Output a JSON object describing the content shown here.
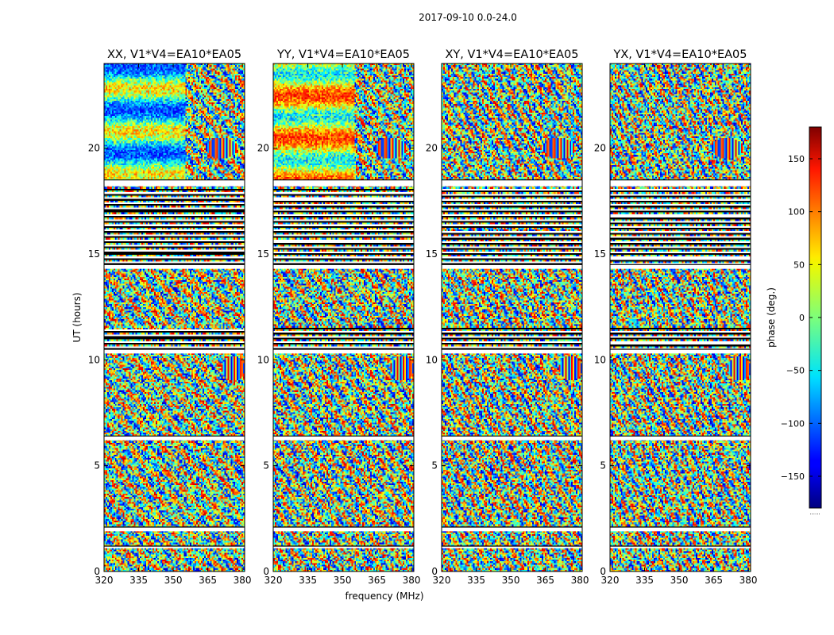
{
  "figure_title": "2017-09-10 0.0-24.0",
  "chart_data": {
    "type": "heatmap",
    "panels": [
      {
        "title": "XX, V1*V4=EA10*EA05"
      },
      {
        "title": "YY, V1*V4=EA10*EA05"
      },
      {
        "title": "XY, V1*V4=EA10*EA05"
      },
      {
        "title": "YX, V1*V4=EA10*EA05"
      }
    ],
    "xlabel": "frequency (MHz)",
    "ylabel": "UT (hours)",
    "xlim": [
      320,
      381
    ],
    "ylim": [
      0,
      24
    ],
    "x_ticks": [
      "320",
      "335",
      "350",
      "365",
      "380"
    ],
    "x_tick_values": [
      320,
      335,
      350,
      365,
      380
    ],
    "y_ticks": [
      "0",
      "5",
      "10",
      "15",
      "20"
    ],
    "y_tick_values": [
      0,
      5,
      10,
      15,
      20
    ],
    "colorbar": {
      "label": "phase (deg.)",
      "range": [
        -180,
        180
      ],
      "ticks": [
        "−150",
        "−100",
        "−50",
        "0",
        "50",
        "100",
        "150"
      ],
      "tick_values": [
        -150,
        -100,
        -50,
        0,
        50,
        100,
        150
      ],
      "colormap": "jet",
      "under_label": "......"
    },
    "flagged_bands_hours": [
      [
        18.2,
        18.5
      ],
      [
        14.3,
        14.5
      ],
      [
        10.3,
        10.5
      ],
      [
        6.2,
        6.4
      ],
      [
        1.9,
        2.1
      ],
      [
        1.1,
        1.2
      ]
    ],
    "dense_flag_zones_hours": [
      [
        14.5,
        18.1
      ],
      [
        10.5,
        11.5
      ]
    ],
    "fringe_features": [
      {
        "x": 371,
        "y": 20.0,
        "span_x": 7,
        "span_y": 0.5
      },
      {
        "x": 376,
        "y": 9.6,
        "span_x": 5,
        "span_y": 0.6
      }
    ]
  }
}
